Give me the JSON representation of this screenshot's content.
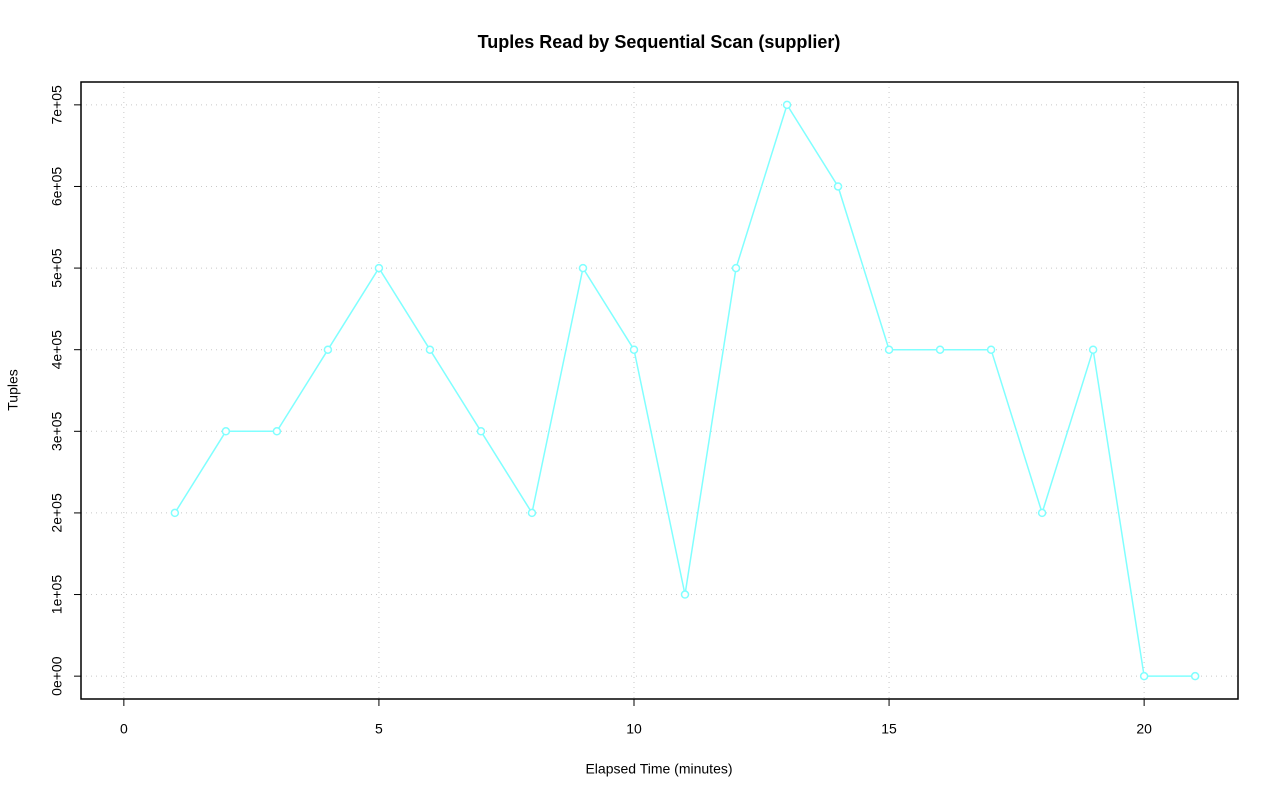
{
  "chart_data": {
    "type": "line",
    "title": "Tuples Read by Sequential Scan (supplier)",
    "x_label": "Elapsed Time (minutes)",
    "y_label": "Tuples",
    "x": [
      1,
      2,
      3,
      4,
      5,
      6,
      7,
      8,
      9,
      10,
      11,
      12,
      13,
      14,
      15,
      16,
      17,
      18,
      19,
      20,
      21
    ],
    "values": [
      200000,
      300000,
      300000,
      400000,
      500000,
      400000,
      300000,
      200000,
      500000,
      400000,
      100000,
      500000,
      700000,
      600000,
      400000,
      400000,
      400000,
      200000,
      400000,
      0,
      0
    ],
    "color": "#80ffff",
    "xlim": [
      -0.84,
      21.84
    ],
    "xticks": [
      0,
      5,
      10,
      15,
      20
    ],
    "ylim": [
      -28000,
      728000
    ],
    "yticks": [
      {
        "value": 0,
        "label": "0e+00"
      },
      {
        "value": 100000,
        "label": "1e+05"
      },
      {
        "value": 200000,
        "label": "2e+05"
      },
      {
        "value": 300000,
        "label": "3e+05"
      },
      {
        "value": 400000,
        "label": "4e+05"
      },
      {
        "value": 500000,
        "label": "5e+05"
      },
      {
        "value": 600000,
        "label": "6e+05"
      },
      {
        "value": 700000,
        "label": "7e+05"
      }
    ],
    "grid": true
  }
}
